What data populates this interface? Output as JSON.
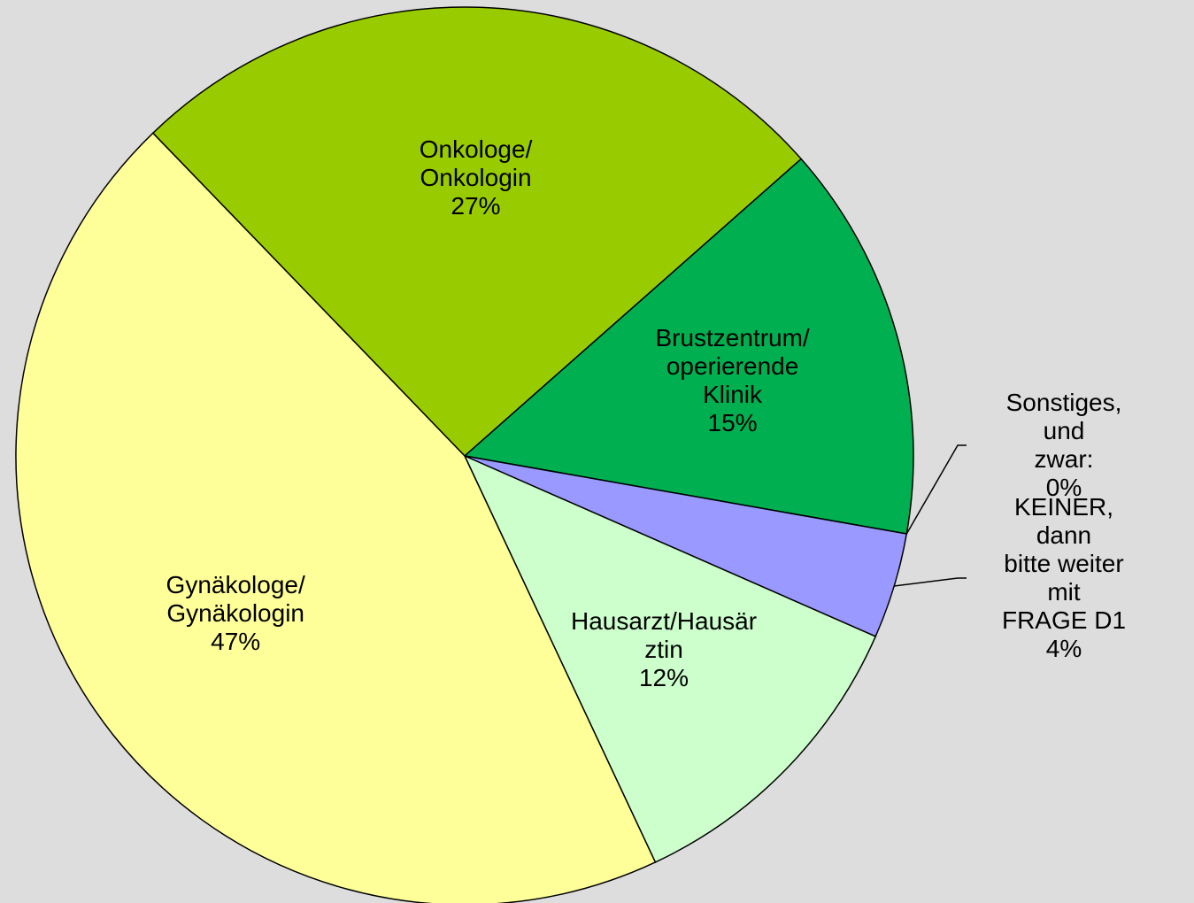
{
  "chart_data": {
    "type": "pie",
    "categories": [
      "Onkologe/\nOnkologin",
      "Brustzentrum/\noperierende\nKlinik",
      "Sonstiges, und\nzwar:",
      "KEINER, dann\nbitte weiter mit\nFRAGE D1",
      "Hausarzt/Hausär\nztin",
      "Gynäkologe/\nGynäkologin"
    ],
    "values": [
      27,
      15,
      0,
      4,
      12,
      47
    ],
    "value_labels": [
      "27%",
      "15%",
      "0%",
      "4%",
      "12%",
      "47%"
    ],
    "colors": [
      "#99cc00",
      "#00b050",
      "#ff9966",
      "#9999ff",
      "#ccffcc",
      "#ffff99"
    ]
  }
}
